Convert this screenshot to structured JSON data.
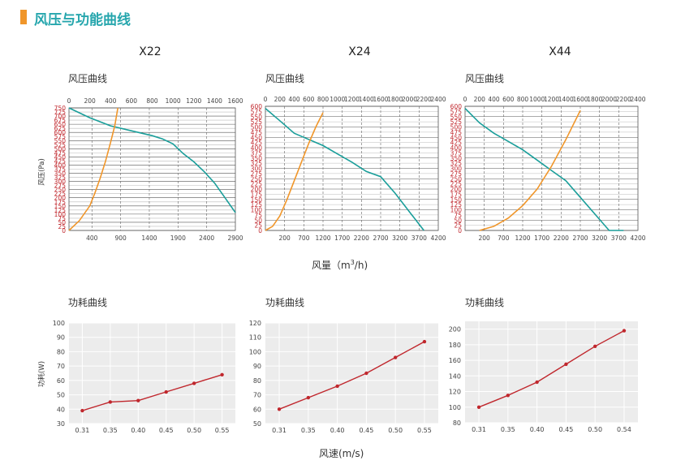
{
  "header": {
    "title": "风压与功能曲线",
    "accent": "#f0962a",
    "title_color": "#26a6ad"
  },
  "models": [
    "X22",
    "X24",
    "X44"
  ],
  "labels": {
    "pressure_curve": "风压曲线",
    "power_curve": "功耗曲线",
    "pressure_ylabel": "风压(Pa)",
    "airflow_xlabel_prefix": "风量（m",
    "airflow_xlabel_sup": "3",
    "airflow_xlabel_suffix": "/h)",
    "power_ylabel": "功耗(W)",
    "speed_xlabel": "风速(m/s)"
  },
  "colors": {
    "pressure": "#1a9e9a",
    "airflow": "#f0962a",
    "power": "#c0272d",
    "grid": "#888888",
    "left_axis_text": "#c0272d"
  },
  "chart_data": [
    {
      "type": "line",
      "model": "X22",
      "title": "风压曲线",
      "ylabel": "风压(Pa)",
      "grid": true,
      "left_axis": {
        "ticks": [
          0,
          25,
          50,
          75,
          100,
          125,
          150,
          175,
          200,
          225,
          250,
          275,
          300,
          325,
          350,
          375,
          400,
          425,
          450,
          475,
          500,
          525,
          550,
          575,
          600,
          625,
          650,
          675,
          700,
          725,
          750
        ]
      },
      "top_axis": {
        "ticks": [
          0,
          200,
          400,
          600,
          800,
          1000,
          1200,
          1400,
          1600
        ],
        "range": [
          0,
          1600
        ]
      },
      "bottom_axis": {
        "ticks": [
          400,
          900,
          1400,
          1900,
          2400,
          2900
        ],
        "range": [
          0,
          2900
        ]
      },
      "series": [
        {
          "role": "pressure",
          "x": [
            0,
            200,
            400,
            600,
            800,
            900,
            1000,
            1100,
            1200,
            1300,
            1400,
            1500,
            1600
          ],
          "y": [
            750,
            690,
            640,
            610,
            580,
            560,
            530,
            470,
            420,
            360,
            290,
            200,
            110
          ]
        },
        {
          "role": "airflow",
          "x": [
            0,
            100,
            200,
            250,
            300,
            350,
            400,
            440,
            470
          ],
          "y": [
            0,
            60,
            150,
            230,
            320,
            420,
            540,
            640,
            750
          ]
        }
      ]
    },
    {
      "type": "line",
      "model": "X24",
      "title": "风压曲线",
      "grid": true,
      "left_axis": {
        "ticks": [
          0,
          25,
          50,
          75,
          100,
          125,
          150,
          175,
          200,
          225,
          250,
          275,
          300,
          325,
          350,
          375,
          400,
          425,
          450,
          475,
          500,
          525,
          550,
          575,
          600
        ]
      },
      "top_axis": {
        "ticks": [
          0,
          200,
          400,
          600,
          800,
          1000,
          1200,
          1400,
          1600,
          1800,
          2000,
          2200,
          2400
        ],
        "range": [
          0,
          2400
        ]
      },
      "bottom_axis": {
        "ticks": [
          200,
          700,
          1200,
          1700,
          2200,
          2700,
          3200,
          3700,
          4200
        ],
        "range": [
          -300,
          4200
        ]
      },
      "series": [
        {
          "role": "pressure",
          "x": [
            0,
            200,
            400,
            600,
            800,
            1000,
            1200,
            1400,
            1600,
            1800,
            2000,
            2200
          ],
          "y": [
            590,
            530,
            470,
            440,
            410,
            370,
            330,
            285,
            260,
            180,
            90,
            0
          ]
        },
        {
          "role": "airflow",
          "x": [
            0,
            100,
            200,
            300,
            400,
            500,
            600,
            700,
            800
          ],
          "y": [
            0,
            20,
            70,
            150,
            240,
            330,
            420,
            500,
            570
          ]
        }
      ]
    },
    {
      "type": "line",
      "model": "X44",
      "title": "风压曲线",
      "grid": true,
      "left_axis": {
        "ticks": [
          0,
          25,
          50,
          75,
          100,
          125,
          150,
          175,
          200,
          225,
          250,
          275,
          300,
          325,
          350,
          375,
          400,
          425,
          450,
          475,
          500,
          525,
          550,
          575,
          600
        ]
      },
      "top_axis": {
        "ticks": [
          0,
          200,
          400,
          600,
          800,
          1000,
          1200,
          1400,
          1600,
          1800,
          2000,
          2200,
          2400
        ],
        "range": [
          0,
          2400
        ]
      },
      "bottom_axis": {
        "ticks": [
          200,
          700,
          1200,
          1700,
          2200,
          2700,
          3200,
          3700,
          4200
        ],
        "range": [
          -300,
          4200
        ]
      },
      "series": [
        {
          "role": "pressure",
          "x": [
            0,
            200,
            400,
            600,
            800,
            1000,
            1200,
            1400,
            1600,
            1800,
            2000,
            2200
          ],
          "y": [
            590,
            520,
            470,
            430,
            390,
            340,
            290,
            240,
            160,
            80,
            0,
            0
          ]
        },
        {
          "role": "airflow",
          "x": [
            200,
            400,
            600,
            800,
            1000,
            1200,
            1400,
            1600
          ],
          "y": [
            0,
            20,
            60,
            120,
            200,
            310,
            440,
            580
          ]
        }
      ]
    },
    {
      "type": "line",
      "model": "X22",
      "title": "功耗曲线",
      "ylabel": "功耗(W)",
      "grid": true,
      "categories": [
        "0.31",
        "0.35",
        "0.40",
        "0.45",
        "0.50",
        "0.55"
      ],
      "yticks": [
        30,
        40,
        50,
        60,
        70,
        80,
        90,
        100
      ],
      "ylim": [
        30,
        100
      ],
      "series": [
        {
          "role": "power",
          "values": [
            39,
            45,
            46,
            52,
            58,
            64
          ]
        }
      ]
    },
    {
      "type": "line",
      "model": "X24",
      "title": "功耗曲线",
      "grid": true,
      "categories": [
        "0.31",
        "0.35",
        "0.40",
        "0.45",
        "0.50",
        "0.55"
      ],
      "yticks": [
        50,
        60,
        70,
        80,
        90,
        100,
        110,
        120
      ],
      "ylim": [
        50,
        120
      ],
      "series": [
        {
          "role": "power",
          "values": [
            60,
            68,
            76,
            85,
            96,
            107
          ]
        }
      ]
    },
    {
      "type": "line",
      "model": "X44",
      "title": "功耗曲线",
      "grid": true,
      "categories": [
        "0.31",
        "0.35",
        "0.40",
        "0.45",
        "0.50",
        "0.54"
      ],
      "yticks": [
        80,
        100,
        120,
        140,
        160,
        180,
        200
      ],
      "ylim": [
        80,
        210
      ],
      "series": [
        {
          "role": "power",
          "values": [
            100,
            115,
            132,
            155,
            178,
            198
          ]
        }
      ]
    }
  ]
}
